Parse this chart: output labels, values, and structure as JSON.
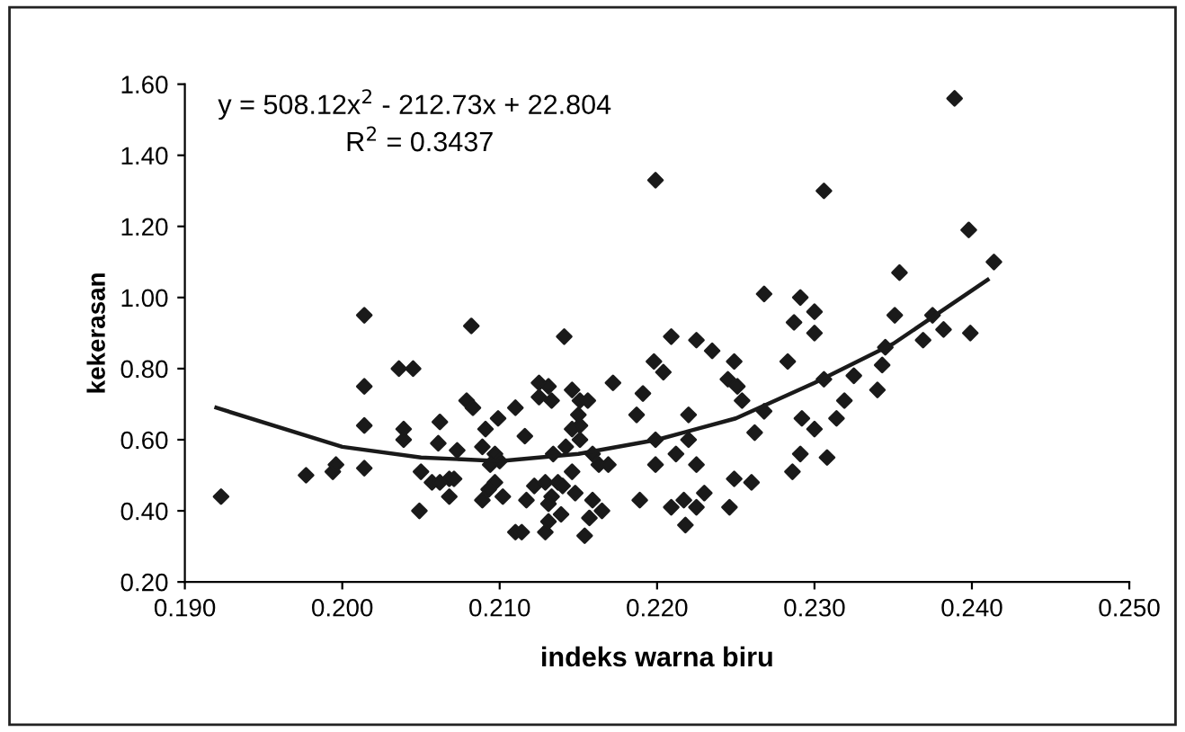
{
  "chart_data": {
    "type": "scatter",
    "xlabel": "indeks warna biru",
    "ylabel": "kekerasan",
    "xlim": [
      0.19,
      0.25
    ],
    "ylim": [
      0.2,
      1.6
    ],
    "xticks": [
      {
        "value": 0.19,
        "label": "0.190"
      },
      {
        "value": 0.2,
        "label": "0.200"
      },
      {
        "value": 0.21,
        "label": "0.210"
      },
      {
        "value": 0.22,
        "label": "0.220"
      },
      {
        "value": 0.23,
        "label": "0.230"
      },
      {
        "value": 0.24,
        "label": "0.240"
      },
      {
        "value": 0.25,
        "label": "0.250"
      }
    ],
    "yticks": [
      {
        "value": 0.2,
        "label": "0.20"
      },
      {
        "value": 0.4,
        "label": "0.40"
      },
      {
        "value": 0.6,
        "label": "0.60"
      },
      {
        "value": 0.8,
        "label": "0.80"
      },
      {
        "value": 1.0,
        "label": "1.00"
      },
      {
        "value": 1.2,
        "label": "1.20"
      },
      {
        "value": 1.4,
        "label": "1.40"
      },
      {
        "value": 1.6,
        "label": "1.60"
      }
    ],
    "grid": false,
    "legend": false,
    "annotations": [
      "y = 508.12x$^{2}$ - 212.73x + 22.804",
      "R$^{2}$ = 0.3437"
    ],
    "series": [
      {
        "color": "#1a1a1a",
        "marker": "diamond",
        "x": [
          0.1923,
          0.1977,
          0.1994,
          0.1996,
          0.2014,
          0.2014,
          0.2014,
          0.2014,
          0.2036,
          0.2045,
          0.2039,
          0.2039,
          0.205,
          0.2049,
          0.2062,
          0.2061,
          0.2057,
          0.2062,
          0.2068,
          0.2071,
          0.2068,
          0.2073,
          0.2082,
          0.2079,
          0.2083,
          0.2091,
          0.2099,
          0.211,
          0.2089,
          0.2097,
          0.2094,
          0.21,
          0.2097,
          0.2093,
          0.2089,
          0.2102,
          0.211,
          0.2199,
          0.2306,
          0.2268,
          0.2291,
          0.2287,
          0.23,
          0.23,
          0.2141,
          0.2209,
          0.2225,
          0.2235,
          0.2249,
          0.2283,
          0.2198,
          0.2204,
          0.2172,
          0.2191,
          0.2187,
          0.2245,
          0.2251,
          0.2254,
          0.2268,
          0.2262,
          0.2306,
          0.2325,
          0.2319,
          0.2314,
          0.2292,
          0.23,
          0.2291,
          0.2286,
          0.2308,
          0.222,
          0.222,
          0.2199,
          0.2199,
          0.2212,
          0.2225,
          0.2249,
          0.226,
          0.2189,
          0.2209,
          0.2217,
          0.2225,
          0.223,
          0.2218,
          0.2246,
          0.2125,
          0.2131,
          0.2125,
          0.2133,
          0.2146,
          0.2151,
          0.2156,
          0.215,
          0.2151,
          0.2146,
          0.2151,
          0.2159,
          0.2163,
          0.2169,
          0.2134,
          0.2142,
          0.2146,
          0.2116,
          0.2122,
          0.2129,
          0.2137,
          0.214,
          0.2133,
          0.2131,
          0.2139,
          0.2148,
          0.2117,
          0.2114,
          0.2129,
          0.2131,
          0.2159,
          0.2157,
          0.2165,
          0.2154,
          0.2389,
          0.2398,
          0.2414,
          0.2354,
          0.2351,
          0.2375,
          0.2382,
          0.2369,
          0.2399,
          0.2345,
          0.2343,
          0.234
        ],
        "values": [
          0.44,
          0.5,
          0.51,
          0.53,
          0.95,
          0.75,
          0.64,
          0.52,
          0.8,
          0.8,
          0.63,
          0.6,
          0.51,
          0.4,
          0.65,
          0.59,
          0.48,
          0.48,
          0.49,
          0.49,
          0.44,
          0.57,
          0.92,
          0.71,
          0.69,
          0.63,
          0.66,
          0.69,
          0.58,
          0.56,
          0.53,
          0.54,
          0.48,
          0.46,
          0.43,
          0.44,
          0.34,
          1.33,
          1.3,
          1.01,
          1.0,
          0.93,
          0.96,
          0.9,
          0.89,
          0.89,
          0.88,
          0.85,
          0.82,
          0.82,
          0.82,
          0.79,
          0.76,
          0.73,
          0.67,
          0.77,
          0.75,
          0.71,
          0.68,
          0.62,
          0.77,
          0.78,
          0.71,
          0.66,
          0.66,
          0.63,
          0.56,
          0.51,
          0.55,
          0.67,
          0.6,
          0.6,
          0.53,
          0.56,
          0.53,
          0.49,
          0.48,
          0.43,
          0.41,
          0.43,
          0.41,
          0.45,
          0.36,
          0.41,
          0.76,
          0.75,
          0.72,
          0.71,
          0.74,
          0.71,
          0.71,
          0.67,
          0.64,
          0.63,
          0.6,
          0.56,
          0.53,
          0.53,
          0.56,
          0.58,
          0.51,
          0.61,
          0.47,
          0.48,
          0.48,
          0.47,
          0.44,
          0.42,
          0.39,
          0.45,
          0.43,
          0.34,
          0.34,
          0.37,
          0.43,
          0.38,
          0.4,
          0.33,
          1.56,
          1.19,
          1.1,
          1.07,
          0.95,
          0.95,
          0.91,
          0.88,
          0.9,
          0.86,
          0.81,
          0.74
        ]
      },
      {
        "type": "line",
        "color": "#1a1a1a",
        "marker": "none",
        "line_style": "solid",
        "x": [
          0.192,
          0.2,
          0.205,
          0.21,
          0.215,
          0.22,
          0.225,
          0.23,
          0.235,
          0.241
        ],
        "values": [
          0.69,
          0.58,
          0.55,
          0.54,
          0.56,
          0.6,
          0.66,
          0.76,
          0.87,
          1.05
        ]
      }
    ]
  }
}
